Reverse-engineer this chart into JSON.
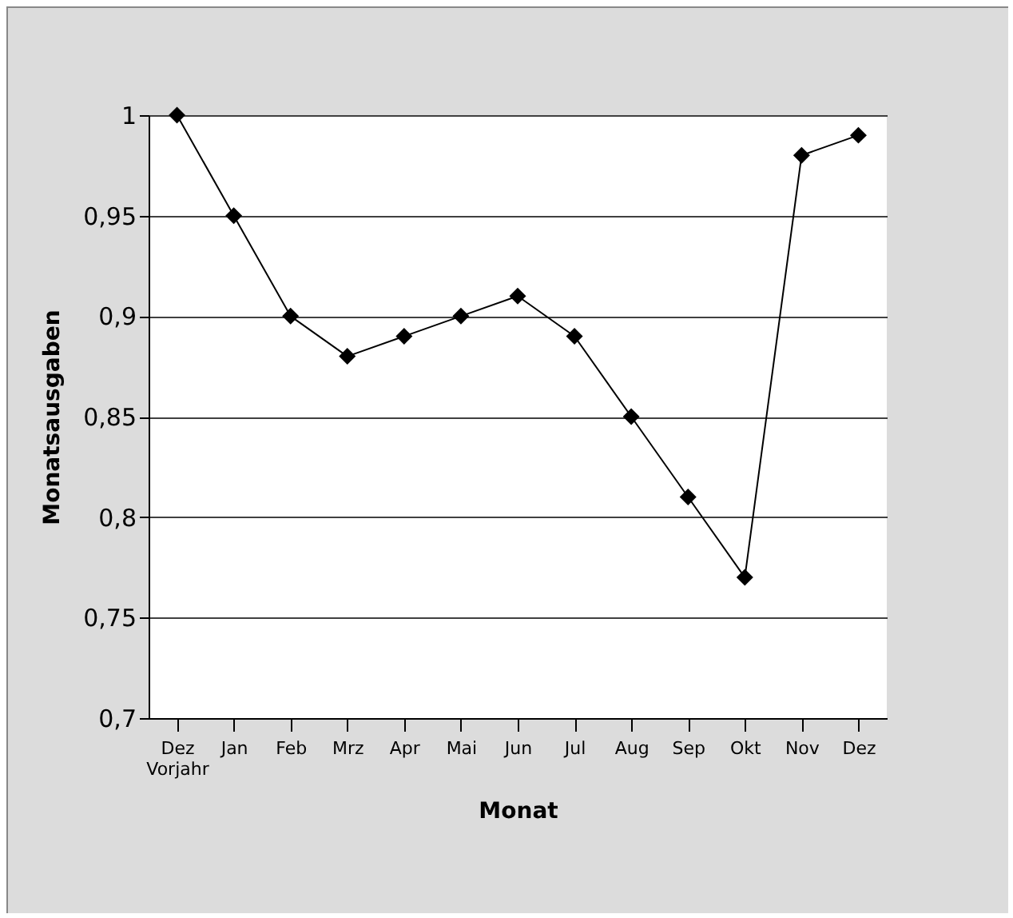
{
  "chart_data": {
    "type": "line",
    "xlabel": "Monat",
    "ylabel": "Monatsausgaben",
    "categories": [
      "Dez Vorjahr",
      "Jan",
      "Feb",
      "Mrz",
      "Apr",
      "Mai",
      "Jun",
      "Jul",
      "Aug",
      "Sep",
      "Okt",
      "Nov",
      "Dez"
    ],
    "series": [
      {
        "color": "#000000",
        "values": [
          1,
          0.95,
          0.9,
          0.88,
          0.89,
          0.9,
          0.91,
          0.89,
          0.85,
          0.81,
          0.77,
          0.98,
          0.99
        ]
      }
    ],
    "ylim": [
      0.7,
      1
    ],
    "yticks": [
      {
        "value": 0.7,
        "label": "0,7"
      },
      {
        "value": 0.75,
        "label": "0,75"
      },
      {
        "value": 0.8,
        "label": "0,8"
      },
      {
        "value": 0.85,
        "label": "0,85"
      },
      {
        "value": 0.9,
        "label": "0,9"
      },
      {
        "value": 0.95,
        "label": "0,95"
      },
      1
    ],
    "grid": "y",
    "marker": "diamond",
    "line_style": "solid"
  }
}
